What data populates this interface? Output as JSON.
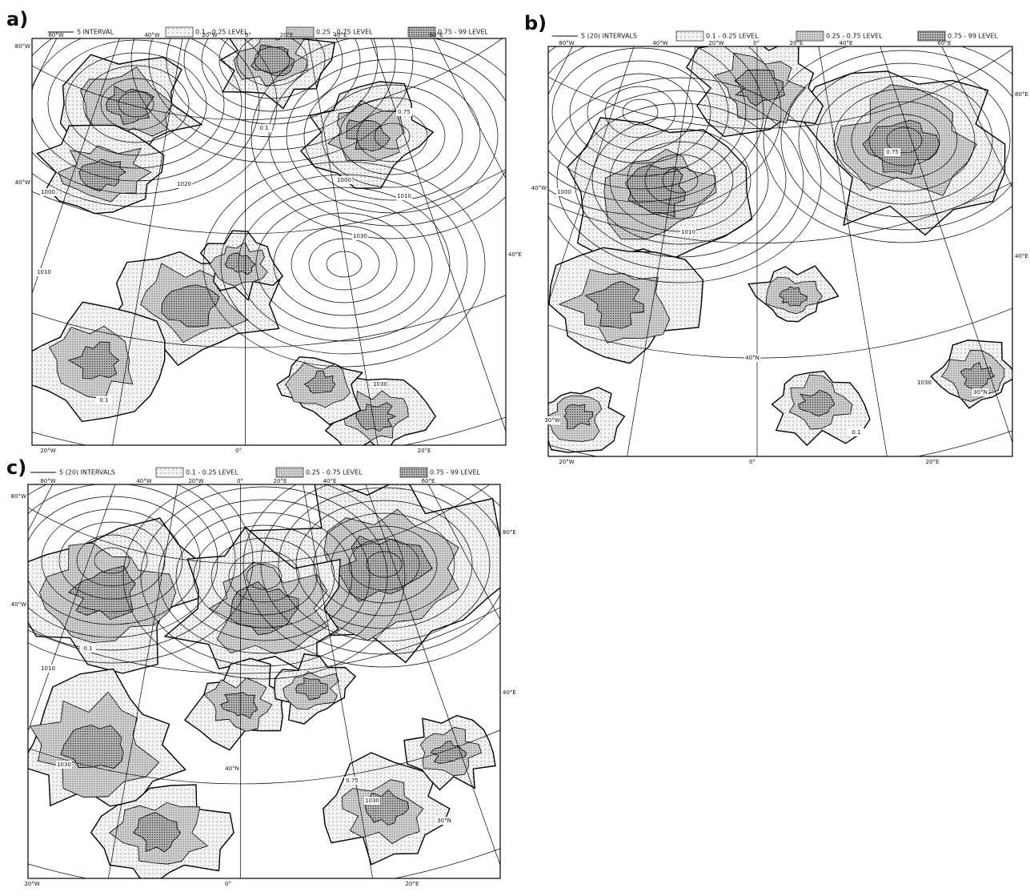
{
  "panels": [
    {
      "label": "a)",
      "legend_line": "5 INTERVAL",
      "legend_levels": [
        "0.1 - 0.25 LEVEL",
        "0.25 - 0.75 LEVEL",
        "0.75 - 99 LEVEL"
      ],
      "top_labels": [
        "60°W",
        "40°W",
        "20°W",
        "0°",
        "20°E",
        "40°E",
        "60°E"
      ],
      "left_labels": [
        "80°W",
        "40°W"
      ],
      "right_labels": [
        "40°E"
      ],
      "bottom_labels": [
        "20°W",
        "0°",
        "20°E"
      ],
      "map_labels": [
        "1000",
        "1010",
        "1020",
        "1030",
        "1030",
        "0.1",
        "0.75",
        "0.1",
        "1010",
        "1000"
      ]
    },
    {
      "label": "b)",
      "legend_line": "5 (20) INTERVALS",
      "legend_levels": [
        "0.1 - 0.25 LEVEL",
        "0.25 - 0.75 LEVEL",
        "0.75 - 99 LEVEL"
      ],
      "top_labels": [
        "80°W",
        "40°W",
        "20°W",
        "0°",
        "20°E",
        "40°E",
        "60°E"
      ],
      "left_labels": [
        "40°W"
      ],
      "right_labels": [
        "80°E",
        "40°E"
      ],
      "bottom_labels": [
        "20°W",
        "0°",
        "20°E"
      ],
      "map_labels": [
        "1000",
        "1010",
        "1030",
        "0.1",
        "0.75",
        "40°N",
        "30°N",
        "30°W"
      ]
    },
    {
      "label": "c)",
      "legend_line": "5 (20) INTERVALS",
      "legend_levels": [
        "0.1 - 0.25 LEVEL",
        "0.25 - 0.75 LEVEL",
        "0.75 - 99 LEVEL"
      ],
      "top_labels": [
        "80°W",
        "40°W",
        "20°W",
        "0°",
        "20°E",
        "40°E",
        "60°E"
      ],
      "left_labels": [
        "80°W",
        "40°W"
      ],
      "right_labels": [
        "80°E",
        "40°E"
      ],
      "bottom_labels": [
        "20°W",
        "0°",
        "20°E"
      ],
      "map_labels": [
        "1010",
        "1030",
        "1030",
        "0.1",
        "0.75",
        "40°N",
        "30°N"
      ]
    }
  ]
}
